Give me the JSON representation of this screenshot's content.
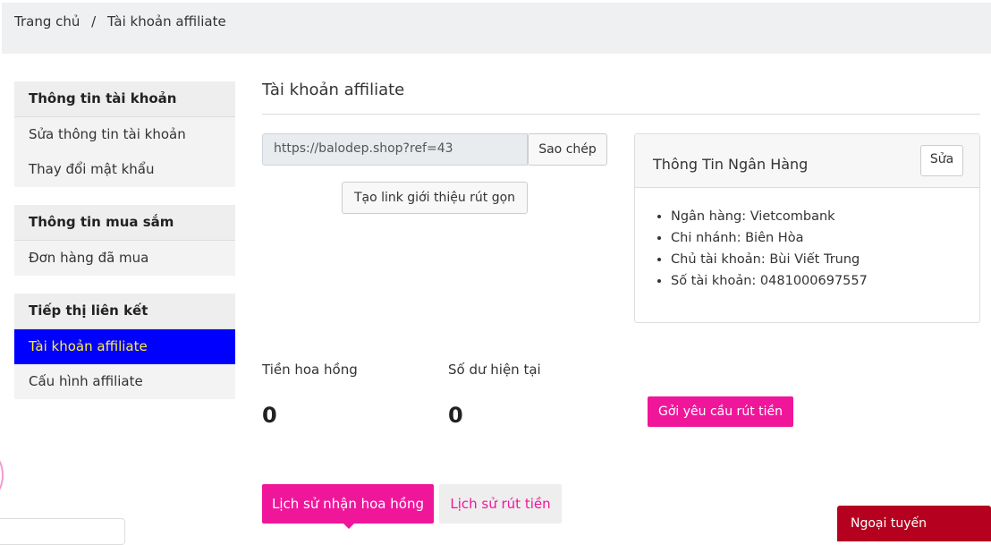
{
  "breadcrumb": {
    "items": [
      "Trang chủ",
      "Tài khoản affiliate"
    ],
    "separator": "/"
  },
  "sidebar": {
    "groups": [
      {
        "title": "Thông tin tài khoản",
        "items": [
          "Sửa thông tin tài khoản",
          "Thay đổi mật khẩu"
        ]
      },
      {
        "title": "Thông tin mua sắm",
        "items": [
          "Đơn hàng đã mua"
        ]
      },
      {
        "title": "Tiếp thị liên kết",
        "items": [
          "Tài khoản affiliate",
          "Cấu hình affiliate"
        ]
      }
    ]
  },
  "main": {
    "title": "Tài khoản affiliate",
    "ref_link": "https://balodep.shop?ref=43",
    "copy_button": "Sao chép",
    "short_link_button": "Tạo link giới thiệu rút gọn",
    "bank": {
      "title": "Thông Tin Ngân Hàng",
      "edit_button": "Sửa",
      "items": [
        "Ngân hàng: Vietcombank",
        "Chi nhánh: Biên Hòa",
        "Chủ tài khoản: Bùi Viết Trung",
        "Số tài khoản: 0481000697557"
      ]
    },
    "stats": [
      {
        "label": "Tiền hoa hồng",
        "value": "0"
      },
      {
        "label": "Số dư hiện tại",
        "value": "0"
      }
    ],
    "withdraw_button": "Gởi yêu cầu rút tiền",
    "tabs": [
      "Lịch sử nhận hoa hồng",
      "Lịch sử rút tiền"
    ]
  },
  "chat": {
    "status": "Ngoại tuyến"
  }
}
